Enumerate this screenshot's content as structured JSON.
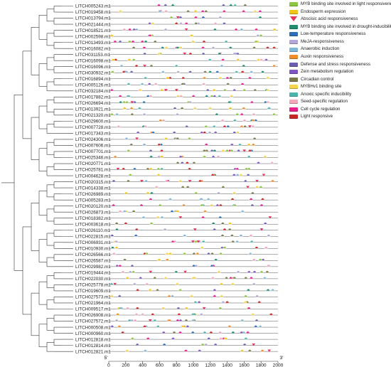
{
  "genes": [
    "LITCH005243.m1",
    "LITCH019458.m1",
    "LITCH013794.m1",
    "LITCH021444.m1",
    "LITCH018521.m1",
    "LITCH002598.m1",
    "LITCH013493.m1",
    "LITCH016082.m1",
    "LITCH031153.m1",
    "LITCH016098.m1",
    "LITCH016096.m1",
    "LITCH030932.m1",
    "LITCH016894.m1",
    "LITCH005126.m1",
    "LITCH032184.m1",
    "LITCH017882.m1",
    "LITCH026694.m1",
    "LITCH013921.m1",
    "LITCH021320.m1",
    "LITCH029600.m1",
    "LITCH007728.m1",
    "LITCH017343.m1",
    "LITCH024306.m1",
    "LITCH007606.m1",
    "LITCH007701.m1",
    "LITCH025346.m1",
    "LITCH020771.m1",
    "LITCH025781.m1",
    "LITCH004628.m1",
    "LITCH020315.m1",
    "LITCH014338.m1",
    "LITCH026989.m1",
    "LITCH005283.m1",
    "LITCH020120.m1",
    "LITCH026873.m1",
    "LITCH018382.m1",
    "LITCH003618.m1",
    "LITCH026110.m1",
    "LITCH022815.m1",
    "LITCH006931.m1",
    "LITCH010930.m1",
    "LITCH026566.m1",
    "LITCH026587.m1",
    "LITCH029982.m1",
    "LITCH019444.m1",
    "LITCH022030.m1",
    "LITCH025778.m1",
    "LITCH019609.m1",
    "LITCH027573.m1",
    "LITCH021964.m1",
    "LITCH009517.m1",
    "LITCH026908.m1",
    "LITCH027572.m1",
    "LITCH000508.m1",
    "LITCH000960.m1",
    "LITCH012818.m1",
    "LITCH012814.m1",
    "LITCH012821.m1"
  ],
  "legend": [
    {
      "label": "MYB binding site involved in light responsiveness",
      "color": "#8cc63f",
      "marker": "bar"
    },
    {
      "label": "Endosperm expression",
      "color": "#f5c518",
      "marker": "bar"
    },
    {
      "label": "Abscisic acid responsiveness",
      "color": "#e8315b",
      "marker": "triangle"
    },
    {
      "label": "MYB binding site involved in drought-inducibility",
      "color": "#1e8c6e",
      "marker": "bar"
    },
    {
      "label": "Low-temperature responsiveness",
      "color": "#2e6fb7",
      "marker": "bar"
    },
    {
      "label": "MeJA-responsiveness",
      "color": "#b4a7d6",
      "marker": "bar"
    },
    {
      "label": "Anaerobic induction",
      "color": "#7fb7d8",
      "marker": "bar"
    },
    {
      "label": "Auxin responsiveness",
      "color": "#f28c28",
      "marker": "bar"
    },
    {
      "label": "Defense and stress responsiveness",
      "color": "#6b5fb0",
      "marker": "bar"
    },
    {
      "label": "Zein metabolism regulation",
      "color": "#7e57c2",
      "marker": "bar"
    },
    {
      "label": "Circadian control",
      "color": "#7a7a4a",
      "marker": "bar"
    },
    {
      "label": "MYBHv1 binding site",
      "color": "#f6d44b",
      "marker": "bar"
    },
    {
      "label": "Anoxic specific inducibility",
      "color": "#4db6ac",
      "marker": "bar"
    },
    {
      "label": "Seed-specific regulation",
      "color": "#f4a7b9",
      "marker": "bar"
    },
    {
      "label": "Cell cycle regulation",
      "color": "#e91e8c",
      "marker": "bar"
    },
    {
      "label": "Light responsive",
      "color": "#c62828",
      "marker": "bar"
    }
  ],
  "axis": {
    "ticks": [
      "0",
      "200",
      "400",
      "600",
      "800",
      "1000",
      "1200",
      "1400",
      "1600",
      "1800",
      "2000"
    ],
    "min": 0,
    "max": 2000,
    "left_end_label": "5'",
    "right_end_label": "3'"
  }
}
